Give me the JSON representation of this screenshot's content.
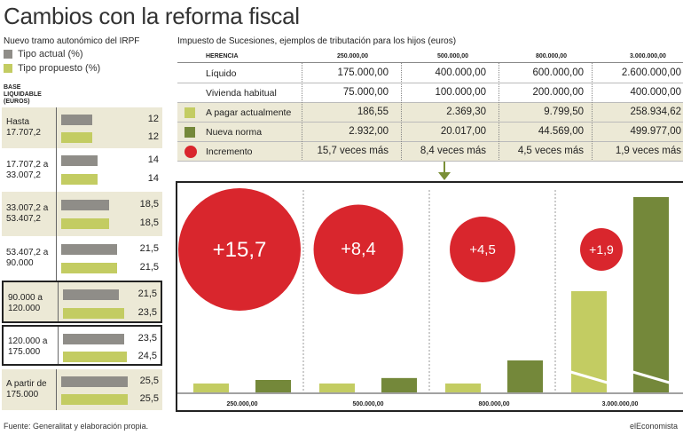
{
  "title": "Cambios con la reforma fiscal",
  "irpf": {
    "subtitle": "Nuevo tramo autonómico del IRPF",
    "legend_actual": "Tipo actual (%)",
    "legend_propuesto": "Tipo propuesto (%)",
    "base_header": [
      "BASE",
      "LIQUIDABLE",
      "(EUROS)"
    ],
    "rows": [
      {
        "range": [
          "Hasta",
          "17.707,2"
        ],
        "actual": 12,
        "actual_label": "12",
        "propuesto": 12,
        "propuesto_label": "12"
      },
      {
        "range": [
          "17.707,2 a",
          "33.007,2"
        ],
        "actual": 14,
        "actual_label": "14",
        "propuesto": 14,
        "propuesto_label": "14"
      },
      {
        "range": [
          "33.007,2 a",
          "53.407,2"
        ],
        "actual": 18.5,
        "actual_label": "18,5",
        "propuesto": 18.5,
        "propuesto_label": "18,5"
      },
      {
        "range": [
          "53.407,2 a",
          "90.000"
        ],
        "actual": 21.5,
        "actual_label": "21,5",
        "propuesto": 21.5,
        "propuesto_label": "21,5"
      },
      {
        "range": [
          "90.000 a",
          "120.000"
        ],
        "actual": 21.5,
        "actual_label": "21,5",
        "propuesto": 23.5,
        "propuesto_label": "23,5"
      },
      {
        "range": [
          "120.000 a",
          "175.000"
        ],
        "actual": 23.5,
        "actual_label": "23,5",
        "propuesto": 24.5,
        "propuesto_label": "24,5"
      },
      {
        "range": [
          "A partir de",
          "175.000"
        ],
        "actual": 25.5,
        "actual_label": "25,5",
        "propuesto": 25.5,
        "propuesto_label": "25,5"
      }
    ]
  },
  "sucesiones": {
    "subtitle": "Impuesto de Sucesiones, ejemplos de tributación para los hijos (euros)",
    "header_label": "HERENCIA",
    "columns": [
      "250.000,00",
      "500.000,00",
      "800.000,00",
      "3.000.000,00"
    ],
    "rows": [
      {
        "label": "Líquido",
        "icon": "",
        "values": [
          "175.000,00",
          "400.000,00",
          "600.000,00",
          "2.600.000,00"
        ]
      },
      {
        "label": "Vivienda habitual",
        "icon": "",
        "values": [
          "75.000,00",
          "100.000,00",
          "200.000,00",
          "400.000,00"
        ]
      },
      {
        "label": "A pagar actualmente",
        "icon": "light-green-square-icon",
        "values": [
          "186,55",
          "2.369,30",
          "9.799,50",
          "258.934,62"
        ]
      },
      {
        "label": "Nueva norma",
        "icon": "dark-green-square-icon",
        "values": [
          "2.932,00",
          "20.017,00",
          "44.569,00",
          "499.977,00"
        ]
      },
      {
        "label": "Incremento",
        "icon": "red-circle-icon",
        "values": [
          "15,7 veces más",
          "8,4 veces más",
          "4,5 veces más",
          "1,9 veces más"
        ]
      }
    ]
  },
  "chart_data": [
    {
      "type": "bar",
      "title": "Nuevo tramo autonómico del IRPF",
      "categories": [
        "Hasta 17.707,2",
        "17.707,2 a 33.007,2",
        "33.007,2 a 53.407,2",
        "53.407,2 a 90.000",
        "90.000 a 120.000",
        "120.000 a 175.000",
        "A partir de 175.000"
      ],
      "series": [
        {
          "name": "Tipo actual (%)",
          "values": [
            12,
            14,
            18.5,
            21.5,
            21.5,
            23.5,
            25.5
          ]
        },
        {
          "name": "Tipo propuesto (%)",
          "values": [
            12,
            14,
            18.5,
            21.5,
            23.5,
            24.5,
            25.5
          ]
        }
      ],
      "orientation": "horizontal"
    },
    {
      "type": "bar",
      "title": "Impuesto de Sucesiones, ejemplos de tributación para los hijos (euros)",
      "categories": [
        "250.000,00",
        "500.000,00",
        "800.000,00",
        "3.000.000,00"
      ],
      "series": [
        {
          "name": "A pagar actualmente",
          "values": [
            186.55,
            2369.3,
            9799.5,
            258934.62
          ]
        },
        {
          "name": "Nueva norma",
          "values": [
            2932,
            20017,
            44569,
            499977
          ]
        }
      ],
      "increments": [
        "+15,7",
        "+8,4",
        "+4,5",
        "+1,9"
      ],
      "increment_values": [
        15.7,
        8.4,
        4.5,
        1.9
      ],
      "scale_note": "broken axis on last category"
    }
  ],
  "colors": {
    "actual": "#8f8d88",
    "propuesto": "#c3cc62",
    "nueva": "#74883a",
    "increment": "#d9262d",
    "shade": "#ece9d6"
  },
  "footer": {
    "source": "Fuente: Generalitat y elaboración propia.",
    "brand": "elEconomista"
  }
}
